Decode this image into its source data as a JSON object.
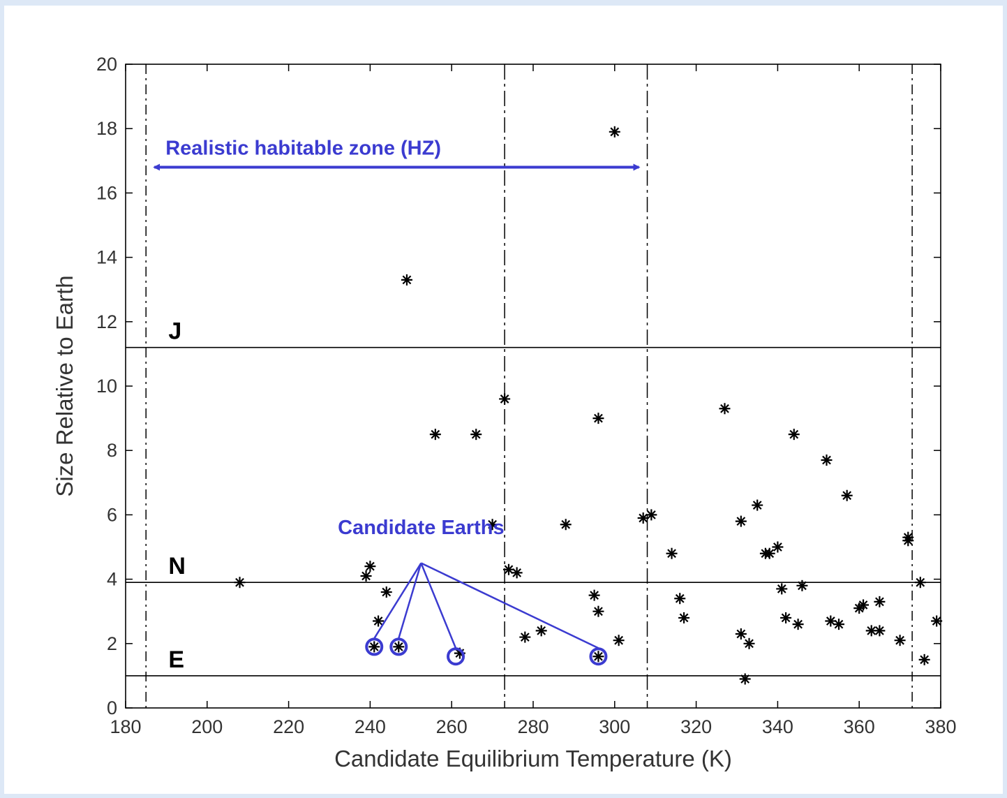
{
  "chart_data": {
    "type": "scatter",
    "title": "",
    "xlabel": "Candidate Equilibrium Temperature (K)",
    "ylabel": "Size Relative to Earth",
    "xlim": [
      180,
      380
    ],
    "ylim": [
      0,
      20
    ],
    "xticks": [
      "180",
      "200",
      "220",
      "240",
      "260",
      "280",
      "300",
      "320",
      "340",
      "360",
      "380"
    ],
    "yticks": [
      "0",
      "2",
      "4",
      "6",
      "8",
      "10",
      "12",
      "14",
      "16",
      "18",
      "20"
    ],
    "grid": false,
    "marker": "asterisk",
    "marker_color": "#000000",
    "annotation_color": "#3b3bd0",
    "size_boundaries": [
      {
        "label": "J",
        "y": 11.2
      },
      {
        "label": "N",
        "y": 3.9
      },
      {
        "label": "E",
        "y": 1.0
      }
    ],
    "vertical_reference_lines": [
      185,
      273,
      308,
      373
    ],
    "habitable_zone": {
      "label": "Realistic habitable zone (HZ)",
      "x_range": [
        185,
        308
      ],
      "y": 16.8
    },
    "candidate_earths": {
      "label": "Candidate Earths",
      "points": [
        {
          "x": 241,
          "y": 1.9
        },
        {
          "x": 247,
          "y": 1.9
        },
        {
          "x": 261,
          "y": 1.6
        },
        {
          "x": 296,
          "y": 1.6
        }
      ]
    },
    "points": [
      {
        "x": 300,
        "y": 17.9
      },
      {
        "x": 249,
        "y": 13.3
      },
      {
        "x": 273,
        "y": 9.6
      },
      {
        "x": 256,
        "y": 8.5
      },
      {
        "x": 266,
        "y": 8.5
      },
      {
        "x": 296,
        "y": 9.0
      },
      {
        "x": 327,
        "y": 9.3
      },
      {
        "x": 344,
        "y": 8.5
      },
      {
        "x": 352,
        "y": 7.7
      },
      {
        "x": 357,
        "y": 6.6
      },
      {
        "x": 270,
        "y": 5.7
      },
      {
        "x": 288,
        "y": 5.7
      },
      {
        "x": 307,
        "y": 5.9
      },
      {
        "x": 309,
        "y": 6.0
      },
      {
        "x": 331,
        "y": 5.8
      },
      {
        "x": 335,
        "y": 6.3
      },
      {
        "x": 314,
        "y": 4.8
      },
      {
        "x": 337,
        "y": 4.8
      },
      {
        "x": 338,
        "y": 4.8
      },
      {
        "x": 340,
        "y": 5.0
      },
      {
        "x": 372,
        "y": 5.3
      },
      {
        "x": 372,
        "y": 5.2
      },
      {
        "x": 208,
        "y": 3.9
      },
      {
        "x": 240,
        "y": 4.4
      },
      {
        "x": 239,
        "y": 4.1
      },
      {
        "x": 274,
        "y": 4.3
      },
      {
        "x": 276,
        "y": 4.2
      },
      {
        "x": 244,
        "y": 3.6
      },
      {
        "x": 242,
        "y": 2.7
      },
      {
        "x": 295,
        "y": 3.5
      },
      {
        "x": 296,
        "y": 3.0
      },
      {
        "x": 316,
        "y": 3.4
      },
      {
        "x": 317,
        "y": 2.8
      },
      {
        "x": 341,
        "y": 3.7
      },
      {
        "x": 346,
        "y": 3.8
      },
      {
        "x": 342,
        "y": 2.8
      },
      {
        "x": 345,
        "y": 2.6
      },
      {
        "x": 353,
        "y": 2.7
      },
      {
        "x": 355,
        "y": 2.6
      },
      {
        "x": 360,
        "y": 3.1
      },
      {
        "x": 361,
        "y": 3.2
      },
      {
        "x": 365,
        "y": 3.3
      },
      {
        "x": 363,
        "y": 2.4
      },
      {
        "x": 365,
        "y": 2.4
      },
      {
        "x": 370,
        "y": 2.1
      },
      {
        "x": 375,
        "y": 3.9
      },
      {
        "x": 379,
        "y": 2.7
      },
      {
        "x": 376,
        "y": 1.5
      },
      {
        "x": 278,
        "y": 2.2
      },
      {
        "x": 282,
        "y": 2.4
      },
      {
        "x": 301,
        "y": 2.1
      },
      {
        "x": 331,
        "y": 2.3
      },
      {
        "x": 333,
        "y": 2.0
      },
      {
        "x": 332,
        "y": 0.9
      },
      {
        "x": 241,
        "y": 1.9
      },
      {
        "x": 247,
        "y": 1.9
      },
      {
        "x": 262,
        "y": 1.7
      },
      {
        "x": 296,
        "y": 1.6
      }
    ]
  }
}
